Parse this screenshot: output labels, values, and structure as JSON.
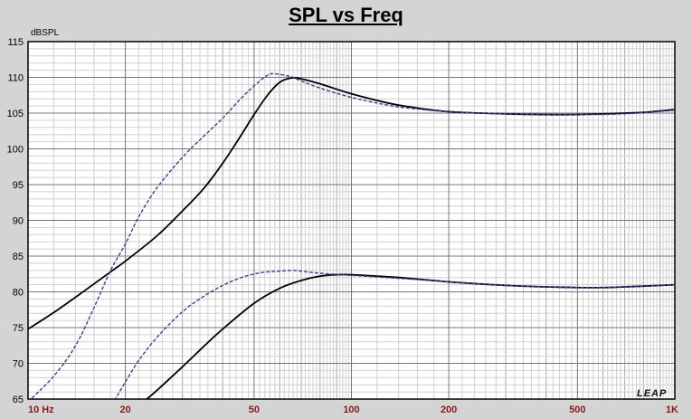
{
  "chart_data": {
    "type": "line",
    "title": "SPL vs Freq",
    "ylabel": "dBSPL",
    "xscale": "log",
    "xlim": [
      10,
      1000
    ],
    "ylim": [
      65,
      115
    ],
    "grid": true,
    "x_ticks": [
      {
        "value": 10,
        "label": "10 Hz"
      },
      {
        "value": 20,
        "label": "20"
      },
      {
        "value": 50,
        "label": "50"
      },
      {
        "value": 100,
        "label": "100"
      },
      {
        "value": 200,
        "label": "200"
      },
      {
        "value": 500,
        "label": "500"
      },
      {
        "value": 1000,
        "label": "1K"
      }
    ],
    "y_ticks": [
      115,
      110,
      105,
      100,
      95,
      90,
      85,
      80,
      75,
      70,
      65
    ],
    "series": [
      {
        "color": "#000000",
        "style": "solid",
        "points": [
          [
            10,
            74.8
          ],
          [
            12,
            77.1
          ],
          [
            15,
            80.2
          ],
          [
            18,
            82.8
          ],
          [
            20,
            84.3
          ],
          [
            25,
            87.8
          ],
          [
            30,
            91.3
          ],
          [
            35,
            94.5
          ],
          [
            40,
            98.0
          ],
          [
            45,
            101.5
          ],
          [
            50,
            104.8
          ],
          [
            55,
            107.5
          ],
          [
            60,
            109.3
          ],
          [
            65,
            109.9
          ],
          [
            70,
            109.8
          ],
          [
            80,
            109.1
          ],
          [
            100,
            107.7
          ],
          [
            130,
            106.4
          ],
          [
            150,
            105.9
          ],
          [
            200,
            105.2
          ],
          [
            300,
            104.9
          ],
          [
            400,
            104.8
          ],
          [
            500,
            104.8
          ],
          [
            600,
            104.9
          ],
          [
            700,
            105.0
          ],
          [
            800,
            105.1
          ],
          [
            1000,
            105.5
          ]
        ]
      },
      {
        "color": "#3c3ca8",
        "style": "dashed",
        "points": [
          [
            10,
            64.6
          ],
          [
            12,
            68.2
          ],
          [
            14,
            72.4
          ],
          [
            16,
            77.8
          ],
          [
            18,
            83.0
          ],
          [
            20,
            86.7
          ],
          [
            22,
            90.5
          ],
          [
            25,
            94.5
          ],
          [
            30,
            98.8
          ],
          [
            35,
            101.8
          ],
          [
            40,
            104.3
          ],
          [
            45,
            106.8
          ],
          [
            50,
            108.8
          ],
          [
            55,
            110.3
          ],
          [
            58,
            110.5
          ],
          [
            65,
            110.1
          ],
          [
            70,
            109.5
          ],
          [
            80,
            108.5
          ],
          [
            100,
            107.2
          ],
          [
            130,
            106.1
          ],
          [
            150,
            105.7
          ],
          [
            200,
            105.2
          ],
          [
            300,
            104.9
          ],
          [
            500,
            104.8
          ],
          [
            700,
            104.9
          ],
          [
            1000,
            105.4
          ]
        ]
      },
      {
        "color": "#000000",
        "style": "solid",
        "points": [
          [
            23,
            64.8
          ],
          [
            25,
            66.2
          ],
          [
            30,
            69.5
          ],
          [
            35,
            72.4
          ],
          [
            40,
            74.8
          ],
          [
            50,
            78.4
          ],
          [
            60,
            80.5
          ],
          [
            70,
            81.6
          ],
          [
            80,
            82.2
          ],
          [
            90,
            82.4
          ],
          [
            100,
            82.4
          ],
          [
            120,
            82.2
          ],
          [
            150,
            81.9
          ],
          [
            200,
            81.4
          ],
          [
            300,
            80.9
          ],
          [
            400,
            80.7
          ],
          [
            500,
            80.6
          ],
          [
            600,
            80.6
          ],
          [
            700,
            80.7
          ],
          [
            800,
            80.8
          ],
          [
            1000,
            81.0
          ]
        ]
      },
      {
        "color": "#3c3ca8",
        "style": "dashed",
        "points": [
          [
            18.5,
            64.8
          ],
          [
            20,
            67.4
          ],
          [
            22,
            70.4
          ],
          [
            25,
            73.6
          ],
          [
            30,
            77.2
          ],
          [
            35,
            79.4
          ],
          [
            40,
            80.9
          ],
          [
            45,
            81.9
          ],
          [
            50,
            82.5
          ],
          [
            55,
            82.8
          ],
          [
            60,
            82.9
          ],
          [
            65,
            83.0
          ],
          [
            70,
            82.9
          ],
          [
            80,
            82.6
          ],
          [
            100,
            82.3
          ],
          [
            150,
            81.8
          ],
          [
            200,
            81.4
          ],
          [
            300,
            80.9
          ],
          [
            500,
            80.6
          ],
          [
            700,
            80.7
          ],
          [
            1000,
            81.0
          ]
        ]
      }
    ]
  },
  "brand": "LEAP"
}
